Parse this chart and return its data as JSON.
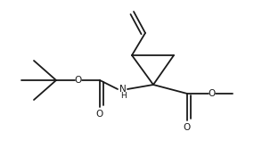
{
  "background": "#ffffff",
  "line_color": "#1a1a1a",
  "lw": 1.3,
  "figsize": [
    2.85,
    1.66
  ],
  "dpi": 100,
  "xlim": [
    0,
    285
  ],
  "ylim": [
    0,
    166
  ]
}
